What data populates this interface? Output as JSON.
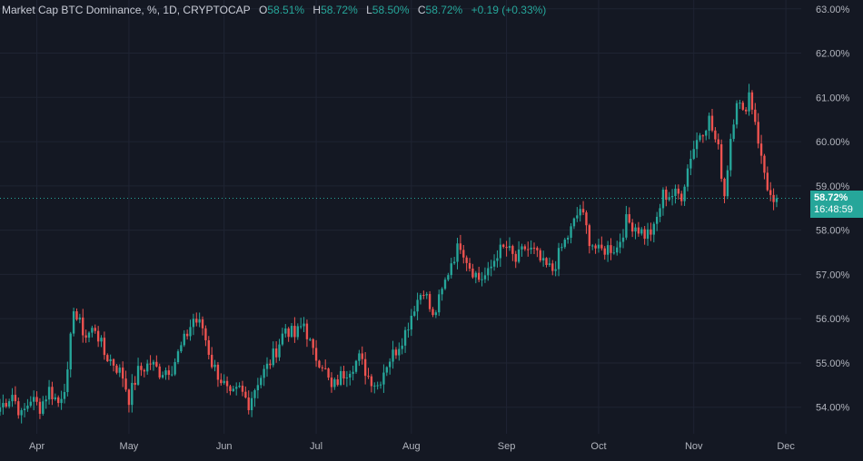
{
  "header": {
    "symbol": "Market Cap BTC Dominance, %, 1D, CRYPTOCAP",
    "open_label": "O",
    "open_value": "58.51%",
    "high_label": "H",
    "high_value": "58.72%",
    "low_label": "L",
    "low_value": "58.50%",
    "close_label": "C",
    "close_value": "58.72%",
    "change": "+0.19 (+0.33%)"
  },
  "price_badge": {
    "price": "58.72%",
    "countdown": "16:48:59"
  },
  "colors": {
    "background": "#141823",
    "up": "#26a69a",
    "down": "#ef5350",
    "grid": "#1f2433",
    "axis_text": "#b2b5be"
  },
  "chart_data": {
    "type": "candlestick",
    "y_unit": "%",
    "ylim": [
      53.4,
      63.2
    ],
    "y_ticks": [
      "54.00%",
      "55.00%",
      "56.00%",
      "57.00%",
      "58.00%",
      "59.00%",
      "60.00%",
      "61.00%",
      "62.00%",
      "63.00%"
    ],
    "y_tick_values": [
      54,
      55,
      56,
      57,
      58,
      59,
      60,
      61,
      62,
      63
    ],
    "x_tick_labels": [
      "Apr",
      "May",
      "Jun",
      "Jul",
      "Aug",
      "Sep",
      "Oct",
      "Nov",
      "Dec"
    ],
    "x_tick_dates": [
      "2024-04-01",
      "2024-05-01",
      "2024-06-01",
      "2024-07-01",
      "2024-08-01",
      "2024-09-01",
      "2024-10-01",
      "2024-11-01",
      "2024-12-01"
    ],
    "x_range": [
      "2024-03-20",
      "2024-12-06"
    ],
    "last_price": 58.72,
    "anchors": [
      [
        "2024-03-20",
        54.0
      ],
      [
        "2024-03-24",
        54.3
      ],
      [
        "2024-03-27",
        53.8
      ],
      [
        "2024-03-30",
        54.2
      ],
      [
        "2024-04-02",
        54.0
      ],
      [
        "2024-04-05",
        54.4
      ],
      [
        "2024-04-08",
        54.1
      ],
      [
        "2024-04-11",
        54.7
      ],
      [
        "2024-04-13",
        56.3
      ],
      [
        "2024-04-14",
        56.0
      ],
      [
        "2024-04-17",
        55.6
      ],
      [
        "2024-04-20",
        55.8
      ],
      [
        "2024-04-23",
        55.2
      ],
      [
        "2024-04-26",
        55.0
      ],
      [
        "2024-04-29",
        54.7
      ],
      [
        "2024-05-01",
        54.2
      ],
      [
        "2024-05-04",
        54.8
      ],
      [
        "2024-05-08",
        55.0
      ],
      [
        "2024-05-11",
        54.8
      ],
      [
        "2024-05-15",
        54.9
      ],
      [
        "2024-05-19",
        55.5
      ],
      [
        "2024-05-22",
        56.0
      ],
      [
        "2024-05-25",
        55.8
      ],
      [
        "2024-05-28",
        55.0
      ],
      [
        "2024-06-01",
        54.5
      ],
      [
        "2024-06-03",
        54.2
      ],
      [
        "2024-06-06",
        54.4
      ],
      [
        "2024-06-09",
        54.1
      ],
      [
        "2024-06-12",
        54.6
      ],
      [
        "2024-06-15",
        54.9
      ],
      [
        "2024-06-18",
        55.3
      ],
      [
        "2024-06-21",
        55.8
      ],
      [
        "2024-06-24",
        55.6
      ],
      [
        "2024-06-27",
        55.9
      ],
      [
        "2024-06-30",
        55.2
      ],
      [
        "2024-07-03",
        55.0
      ],
      [
        "2024-07-06",
        54.4
      ],
      [
        "2024-07-09",
        54.7
      ],
      [
        "2024-07-12",
        54.9
      ],
      [
        "2024-07-15",
        55.1
      ],
      [
        "2024-07-18",
        54.7
      ],
      [
        "2024-07-21",
        54.5
      ],
      [
        "2024-07-24",
        55.0
      ],
      [
        "2024-07-27",
        55.3
      ],
      [
        "2024-07-30",
        55.7
      ],
      [
        "2024-08-02",
        56.3
      ],
      [
        "2024-08-05",
        56.7
      ],
      [
        "2024-08-08",
        56.0
      ],
      [
        "2024-08-11",
        56.6
      ],
      [
        "2024-08-14",
        57.3
      ],
      [
        "2024-08-17",
        57.7
      ],
      [
        "2024-08-20",
        57.2
      ],
      [
        "2024-08-23",
        56.9
      ],
      [
        "2024-08-26",
        57.0
      ],
      [
        "2024-08-29",
        57.5
      ],
      [
        "2024-09-01",
        57.6
      ],
      [
        "2024-09-04",
        57.3
      ],
      [
        "2024-09-07",
        57.6
      ],
      [
        "2024-09-10",
        57.5
      ],
      [
        "2024-09-13",
        57.2
      ],
      [
        "2024-09-16",
        57.1
      ],
      [
        "2024-09-19",
        57.6
      ],
      [
        "2024-09-22",
        58.0
      ],
      [
        "2024-09-25",
        58.5
      ],
      [
        "2024-09-28",
        57.8
      ],
      [
        "2024-10-01",
        57.5
      ],
      [
        "2024-10-04",
        57.6
      ],
      [
        "2024-10-07",
        57.6
      ],
      [
        "2024-10-10",
        58.2
      ],
      [
        "2024-10-13",
        58.1
      ],
      [
        "2024-10-16",
        57.9
      ],
      [
        "2024-10-19",
        58.0
      ],
      [
        "2024-10-22",
        58.8
      ],
      [
        "2024-10-25",
        58.8
      ],
      [
        "2024-10-28",
        58.8
      ],
      [
        "2024-10-31",
        59.7
      ],
      [
        "2024-11-03",
        60.2
      ],
      [
        "2024-11-06",
        60.5
      ],
      [
        "2024-11-09",
        59.8
      ],
      [
        "2024-11-11",
        58.8
      ],
      [
        "2024-11-13",
        60.1
      ],
      [
        "2024-11-15",
        61.0
      ],
      [
        "2024-11-17",
        60.6
      ],
      [
        "2024-11-19",
        61.1
      ],
      [
        "2024-11-21",
        60.5
      ],
      [
        "2024-11-23",
        59.6
      ],
      [
        "2024-11-25",
        59.0
      ],
      [
        "2024-11-27",
        58.5
      ],
      [
        "2024-11-28",
        58.72
      ]
    ]
  }
}
